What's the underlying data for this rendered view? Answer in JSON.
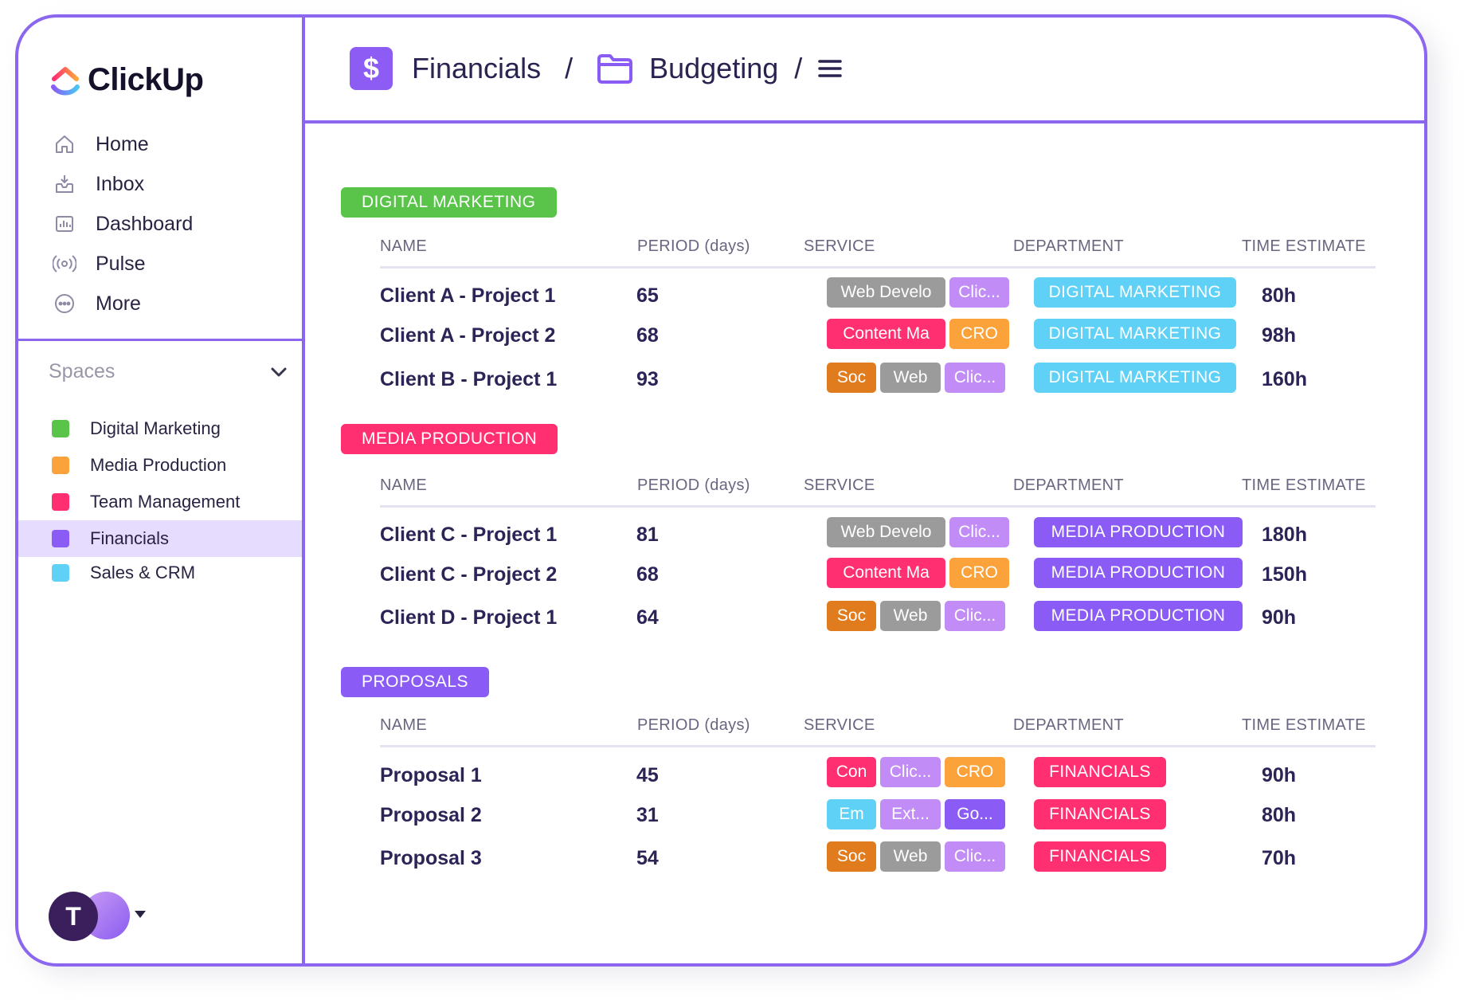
{
  "app": {
    "logo_text": "ClickUp"
  },
  "nav": [
    {
      "label": "Home",
      "icon": "home-icon"
    },
    {
      "label": "Inbox",
      "icon": "inbox-icon"
    },
    {
      "label": "Dashboard",
      "icon": "dashboard-icon"
    },
    {
      "label": "Pulse",
      "icon": "pulse-icon"
    },
    {
      "label": "More",
      "icon": "more-icon"
    }
  ],
  "spaces": {
    "title": "Spaces",
    "items": [
      {
        "label": "Digital Marketing",
        "color": "#5ac34a"
      },
      {
        "label": "Media Production",
        "color": "#fba23a"
      },
      {
        "label": "Team Management",
        "color": "#ff2f72"
      },
      {
        "label": "Financials",
        "color": "#8a5cf5",
        "active": true
      },
      {
        "label": "Sales & CRM",
        "color": "#5fd1f7"
      }
    ]
  },
  "user": {
    "initial": "T"
  },
  "header": {
    "crumb1": "Financials",
    "crumb2": "Budgeting",
    "separator": "/",
    "dollar": "$"
  },
  "columns": {
    "name": "NAME",
    "period": "PERIOD (days)",
    "service": "SERVICE",
    "department": "DEPARTMENT",
    "time": "TIME ESTIMATE"
  },
  "groups": [
    {
      "label": "DIGITAL MARKETING",
      "color": "#5ac34a",
      "rows": [
        {
          "name": "Client A - Project 1",
          "period": "65",
          "time": "80h",
          "services": [
            {
              "label": "Web Develo",
              "color": "#9b9b9b"
            },
            {
              "label": "Clic...",
              "color": "#c18cf5"
            }
          ],
          "department": {
            "label": "DIGITAL MARKETING",
            "color": "#5fd1f7"
          }
        },
        {
          "name": "Client A - Project 2",
          "period": "68",
          "time": "98h",
          "services": [
            {
              "label": "Content Ma",
              "color": "#ff2f72"
            },
            {
              "label": "CRO",
              "color": "#fba23a"
            }
          ],
          "department": {
            "label": "DIGITAL MARKETING",
            "color": "#5fd1f7"
          }
        },
        {
          "name": "Client B - Project 1",
          "period": "93",
          "time": "160h",
          "services": [
            {
              "label": "Soc",
              "color": "#e07c1e"
            },
            {
              "label": "Web",
              "color": "#9b9b9b"
            },
            {
              "label": "Clic...",
              "color": "#c18cf5"
            }
          ],
          "department": {
            "label": "DIGITAL MARKETING",
            "color": "#5fd1f7"
          }
        }
      ]
    },
    {
      "label": "MEDIA PRODUCTION",
      "color": "#ff2f72",
      "rows": [
        {
          "name": "Client C - Project 1",
          "period": "81",
          "time": "180h",
          "services": [
            {
              "label": "Web Develo",
              "color": "#9b9b9b"
            },
            {
              "label": "Clic...",
              "color": "#c18cf5"
            }
          ],
          "department": {
            "label": "MEDIA PRODUCTION",
            "color": "#8a5cf5"
          }
        },
        {
          "name": "Client C - Project 2",
          "period": "68",
          "time": "150h",
          "services": [
            {
              "label": "Content Ma",
              "color": "#ff2f72"
            },
            {
              "label": "CRO",
              "color": "#fba23a"
            }
          ],
          "department": {
            "label": "MEDIA PRODUCTION",
            "color": "#8a5cf5"
          }
        },
        {
          "name": "Client D - Project 1",
          "period": "64",
          "time": "90h",
          "services": [
            {
              "label": "Soc",
              "color": "#e07c1e"
            },
            {
              "label": "Web",
              "color": "#9b9b9b"
            },
            {
              "label": "Clic...",
              "color": "#c18cf5"
            }
          ],
          "department": {
            "label": "MEDIA PRODUCTION",
            "color": "#8a5cf5"
          }
        }
      ]
    },
    {
      "label": "PROPOSALS",
      "color": "#8a5cf5",
      "rows": [
        {
          "name": "Proposal 1",
          "period": "45",
          "time": "90h",
          "services": [
            {
              "label": "Con",
              "color": "#ff2f72"
            },
            {
              "label": "Clic...",
              "color": "#c18cf5"
            },
            {
              "label": "CRO",
              "color": "#fba23a"
            }
          ],
          "department": {
            "label": "FINANCIALS",
            "color": "#ff2f72"
          }
        },
        {
          "name": "Proposal 2",
          "period": "31",
          "time": "80h",
          "services": [
            {
              "label": "Em",
              "color": "#5fd1f7"
            },
            {
              "label": "Ext...",
              "color": "#c18cf5"
            },
            {
              "label": "Go...",
              "color": "#8a5cf5"
            }
          ],
          "department": {
            "label": "FINANCIALS",
            "color": "#ff2f72"
          }
        },
        {
          "name": "Proposal 3",
          "period": "54",
          "time": "70h",
          "services": [
            {
              "label": "Soc",
              "color": "#e07c1e"
            },
            {
              "label": "Web",
              "color": "#9b9b9b"
            },
            {
              "label": "Clic...",
              "color": "#c18cf5"
            }
          ],
          "department": {
            "label": "FINANCIALS",
            "color": "#ff2f72"
          }
        }
      ]
    }
  ]
}
